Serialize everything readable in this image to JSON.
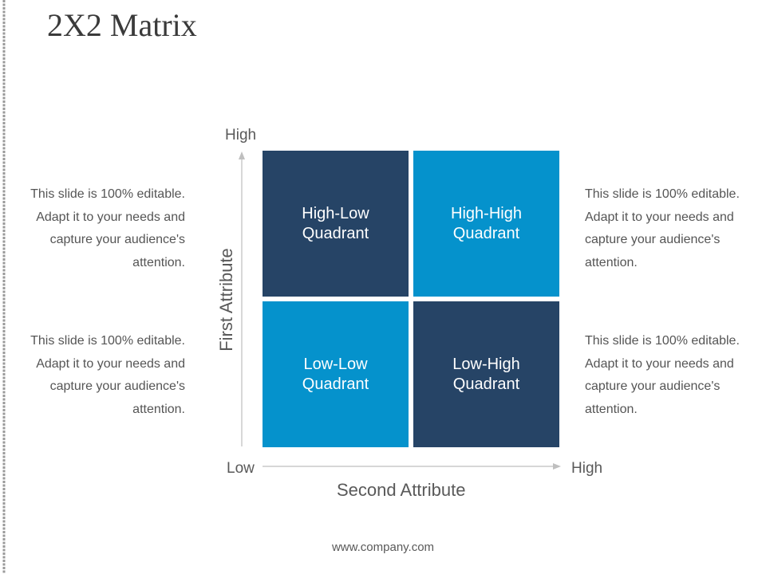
{
  "slide": {
    "title": "2X2 Matrix",
    "footer": "www.company.com"
  },
  "side_text": {
    "top_left": "This slide is 100% editable.  Adapt it to your needs and capture your audience's attention.",
    "bottom_left": "This slide is 100% editable.  Adapt it to your needs and capture your audience's attention.",
    "top_right": "This slide is 100% editable.  Adapt it to your needs and capture your audience's attention.",
    "bottom_right": "This slide is 100% editable.  Adapt it to your needs and capture your audience's attention."
  },
  "matrix": {
    "quadrants": [
      {
        "label": "High-Low\nQuadrant"
      },
      {
        "label": "High-High\nQuadrant"
      },
      {
        "label": "Low-Low\nQuadrant"
      },
      {
        "label": "Low-High\nQuadrant"
      }
    ],
    "y_axis": {
      "title": "First Attribute",
      "high": "High",
      "low": "Low"
    },
    "x_axis": {
      "title": "Second Attribute",
      "high": "High"
    }
  },
  "colors": {
    "dark_quadrant": "#264466",
    "light_quadrant": "#0592cc",
    "axis_line": "#bfbfbf",
    "text": "#595959"
  }
}
